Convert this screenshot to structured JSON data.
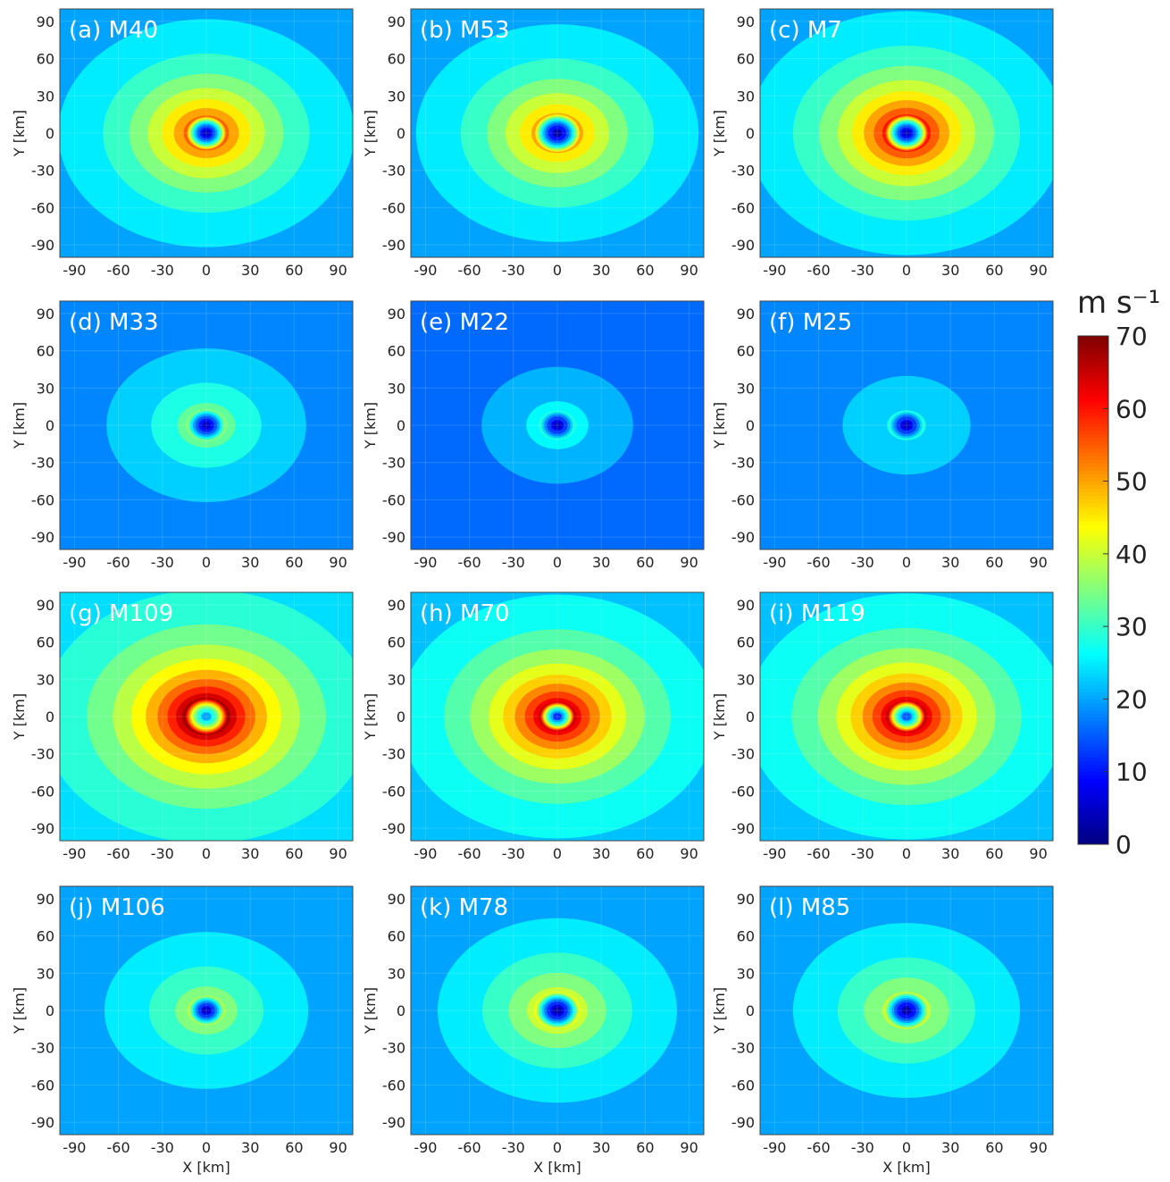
{
  "chart_data": {
    "type": "contour",
    "colormap": "jet",
    "xlabel": "X [km]",
    "ylabel": "Y [km]",
    "xlim": [
      -100,
      100
    ],
    "ylim": [
      -100,
      100
    ],
    "xticks": [
      -90,
      -60,
      -30,
      0,
      30,
      60,
      90
    ],
    "yticks": [
      -90,
      -60,
      -30,
      0,
      30,
      60,
      90
    ],
    "clim": [
      0,
      70
    ],
    "cticks": [
      0,
      10,
      20,
      30,
      40,
      50,
      60,
      70
    ],
    "colorbar_label": "m s⁻¹",
    "panels": [
      {
        "title": "(a) M40",
        "peak": 55,
        "eye": 5,
        "rmw": 14,
        "ambient": 20
      },
      {
        "title": "(b) M53",
        "peak": 50,
        "eye": 3,
        "rmw": 16,
        "ambient": 20
      },
      {
        "title": "(c) M7",
        "peak": 60,
        "eye": 5,
        "rmw": 15,
        "ambient": 20
      },
      {
        "title": "(d) M33",
        "peak": 35,
        "eye": 5,
        "rmw": 13,
        "ambient": 18
      },
      {
        "title": "(e) M22",
        "peak": 28,
        "eye": 5,
        "rmw": 12,
        "ambient": 16
      },
      {
        "title": "(f) M25",
        "peak": 28,
        "eye": 5,
        "rmw": 12,
        "ambient": 18
      },
      {
        "title": "(g) M109",
        "peak": 68,
        "eye": 20,
        "rmw": 15,
        "ambient": 24
      },
      {
        "title": "(h) M70",
        "peak": 65,
        "eye": 12,
        "rmw": 12,
        "ambient": 22
      },
      {
        "title": "(i) M119",
        "peak": 65,
        "eye": 15,
        "rmw": 13,
        "ambient": 22
      },
      {
        "title": "(j) M106",
        "peak": 38,
        "eye": 5,
        "rmw": 12,
        "ambient": 20
      },
      {
        "title": "(k) M78",
        "peak": 42,
        "eye": 3,
        "rmw": 15,
        "ambient": 20
      },
      {
        "title": "(l) M85",
        "peak": 40,
        "eye": 3,
        "rmw": 15,
        "ambient": 20
      }
    ]
  }
}
